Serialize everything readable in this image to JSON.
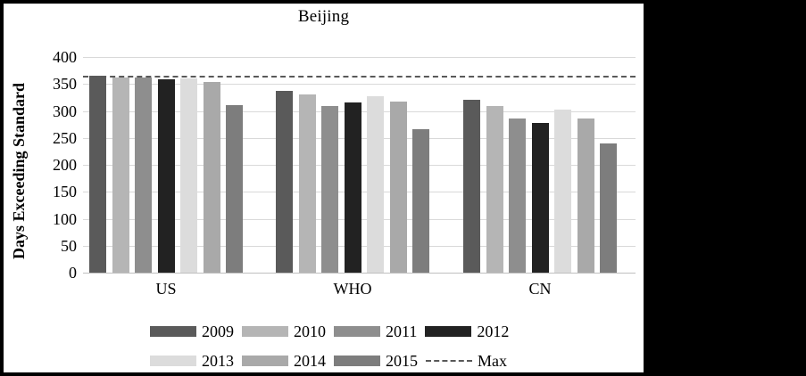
{
  "chart_data": {
    "type": "bar",
    "title": "Beijing",
    "xlabel": "",
    "ylabel": "Days Exceeding Standard",
    "categories": [
      "US",
      "WHO",
      "CN"
    ],
    "series": [
      {
        "name": "2009",
        "color": "#5a5a5a",
        "values": [
          365,
          338,
          320
        ]
      },
      {
        "name": "2010",
        "color": "#b5b5b5",
        "values": [
          362,
          330,
          309
        ]
      },
      {
        "name": "2011",
        "color": "#8e8e8e",
        "values": [
          362,
          309,
          286
        ]
      },
      {
        "name": "2012",
        "color": "#222222",
        "values": [
          359,
          315,
          277
        ]
      },
      {
        "name": "2013",
        "color": "#dcdcdc",
        "values": [
          361,
          327,
          302
        ]
      },
      {
        "name": "2014",
        "color": "#a9a9a9",
        "values": [
          354,
          317,
          286
        ]
      },
      {
        "name": "2015",
        "color": "#7d7d7d",
        "values": [
          311,
          267,
          240
        ]
      }
    ],
    "max_line": {
      "label": "Max",
      "value": 365,
      "color": "#595959",
      "style": "dashed"
    },
    "y_axis": {
      "min": 0,
      "max": 400,
      "ticks": [
        400,
        350,
        300,
        250,
        200,
        150,
        100,
        50,
        0
      ]
    },
    "grid": true,
    "legend_position": "bottom",
    "legend_rows": [
      [
        "2009",
        "2010",
        "2011",
        "2012"
      ],
      [
        "2013",
        "2014",
        "2015",
        "Max"
      ]
    ]
  },
  "frame_color": "#000000",
  "gridline_color": "#d9d9d9"
}
